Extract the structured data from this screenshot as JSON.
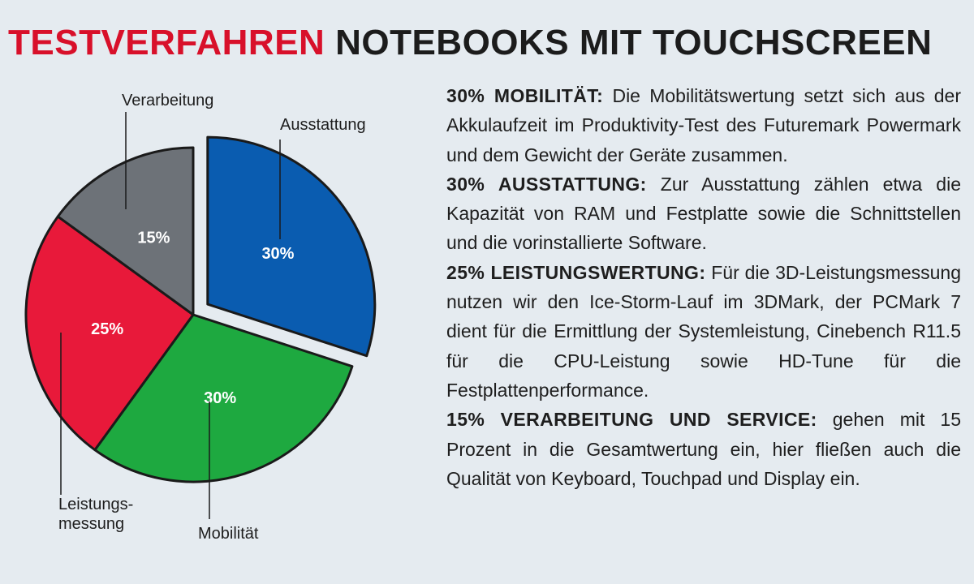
{
  "title": {
    "accent": "TESTVERFAHREN",
    "rest": "NOTEBOOKS MIT TOUCHSCREEN"
  },
  "chart_data": {
    "type": "pie",
    "slices": [
      {
        "label": "Ausstattung",
        "value": 30,
        "value_label": "30%",
        "color": "#0a5cb0",
        "exploded": true
      },
      {
        "label": "Mobilität",
        "value": 30,
        "value_label": "30%",
        "color": "#1ea940",
        "exploded": false
      },
      {
        "label": "Leistungs-\nmessung",
        "value": 25,
        "value_label": "25%",
        "color": "#e8193a",
        "exploded": false
      },
      {
        "label": "Verarbeitung",
        "value": 15,
        "value_label": "15%",
        "color": "#6d7278",
        "exploded": false
      }
    ],
    "legend": "none"
  },
  "descriptions": [
    {
      "heading": "30% MOBILITÄT:",
      "text": " Die Mobilitätswertung setzt sich aus der Akkulaufzeit im Produktivity-Test des Futuremark Powermark und dem Gewicht der Geräte zusammen."
    },
    {
      "heading": "30% AUSSTATTUNG:",
      "text": " Zur Ausstattung zählen etwa die Kapazität von RAM und Festplatte sowie die Schnittstellen und die vorinstallierte Software."
    },
    {
      "heading": "25% LEISTUNGSWERTUNG:",
      "text": " Für die 3D-Leistungsmessung nutzen wir den Ice-Storm-Lauf im 3DMark, der PCMark 7 dient für die Ermittlung der Systemleistung, Cinebench R11.5 für die CPU-Leistung sowie HD-Tune für die Festplattenperformance."
    },
    {
      "heading": "15% VERARBEITUNG UND SERVICE:",
      "text": " gehen mit 15 Prozent in die Gesamtwertung ein, hier fließen auch die Qualität von Keyboard, Touchpad und Display ein."
    }
  ]
}
